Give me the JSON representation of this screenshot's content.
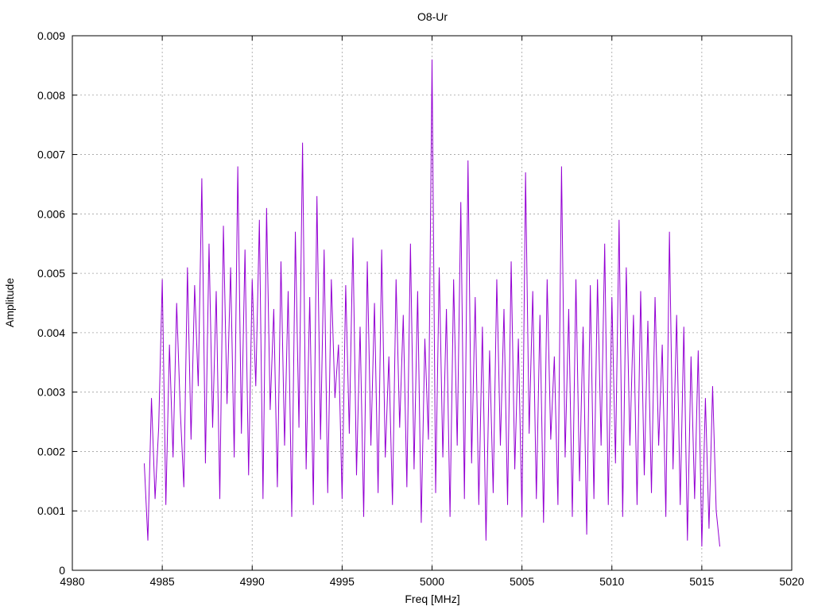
{
  "chart_data": {
    "type": "line",
    "title": "O8-Ur",
    "xlabel": "Freq [MHz]",
    "ylabel": "Amplitude",
    "xlim": [
      4980,
      5020
    ],
    "ylim": [
      0,
      0.009
    ],
    "x_ticks": [
      "4980",
      "4985",
      "4990",
      "4995",
      "5000",
      "5005",
      "5010",
      "5015",
      "5020"
    ],
    "y_ticks": [
      "0",
      "0.001",
      "0.002",
      "0.003",
      "0.004",
      "0.005",
      "0.006",
      "0.007",
      "0.008",
      "0.009"
    ],
    "grid": true,
    "legend": "none",
    "series": [
      {
        "color": "#9400d3",
        "x": [
          4984.0,
          4984.2,
          4984.4,
          4984.6,
          4984.8,
          4985.0,
          4985.2,
          4985.4,
          4985.6,
          4985.8,
          4986.0,
          4986.2,
          4986.4,
          4986.6,
          4986.8,
          4987.0,
          4987.2,
          4987.4,
          4987.6,
          4987.8,
          4988.0,
          4988.2,
          4988.4,
          4988.6,
          4988.8,
          4989.0,
          4989.2,
          4989.4,
          4989.6,
          4989.8,
          4990.0,
          4990.2,
          4990.4,
          4990.6,
          4990.8,
          4991.0,
          4991.2,
          4991.4,
          4991.6,
          4991.8,
          4992.0,
          4992.2,
          4992.4,
          4992.6,
          4992.8,
          4993.0,
          4993.2,
          4993.4,
          4993.6,
          4993.8,
          4994.0,
          4994.2,
          4994.4,
          4994.6,
          4994.8,
          4995.0,
          4995.2,
          4995.4,
          4995.6,
          4995.8,
          4996.0,
          4996.2,
          4996.4,
          4996.6,
          4996.8,
          4997.0,
          4997.2,
          4997.4,
          4997.6,
          4997.8,
          4998.0,
          4998.2,
          4998.4,
          4998.6,
          4998.8,
          4999.0,
          4999.2,
          4999.4,
          4999.6,
          4999.8,
          5000.0,
          5000.2,
          5000.4,
          5000.6,
          5000.8,
          5001.0,
          5001.2,
          5001.4,
          5001.6,
          5001.8,
          5002.0,
          5002.2,
          5002.4,
          5002.6,
          5002.8,
          5003.0,
          5003.2,
          5003.4,
          5003.6,
          5003.8,
          5004.0,
          5004.2,
          5004.4,
          5004.6,
          5004.8,
          5005.0,
          5005.2,
          5005.4,
          5005.6,
          5005.8,
          5006.0,
          5006.2,
          5006.4,
          5006.6,
          5006.8,
          5007.0,
          5007.2,
          5007.4,
          5007.6,
          5007.8,
          5008.0,
          5008.2,
          5008.4,
          5008.6,
          5008.8,
          5009.0,
          5009.2,
          5009.4,
          5009.6,
          5009.8,
          5010.0,
          5010.2,
          5010.4,
          5010.6,
          5010.8,
          5011.0,
          5011.2,
          5011.4,
          5011.6,
          5011.8,
          5012.0,
          5012.2,
          5012.4,
          5012.6,
          5012.8,
          5013.0,
          5013.2,
          5013.4,
          5013.6,
          5013.8,
          5014.0,
          5014.2,
          5014.4,
          5014.6,
          5014.8,
          5015.0,
          5015.2,
          5015.4,
          5015.6,
          5015.8,
          5016.0
        ],
        "y": [
          0.0018,
          0.0005,
          0.0029,
          0.0012,
          0.0024,
          0.0049,
          0.0011,
          0.0038,
          0.0019,
          0.0045,
          0.0027,
          0.0014,
          0.0051,
          0.0022,
          0.0048,
          0.0031,
          0.0066,
          0.0018,
          0.0055,
          0.0024,
          0.0047,
          0.0012,
          0.0058,
          0.0028,
          0.0051,
          0.0019,
          0.0068,
          0.0023,
          0.0054,
          0.0016,
          0.0049,
          0.0031,
          0.0059,
          0.0012,
          0.0061,
          0.0027,
          0.0044,
          0.0014,
          0.0052,
          0.0021,
          0.0047,
          0.0009,
          0.0057,
          0.0024,
          0.0072,
          0.0017,
          0.0046,
          0.0011,
          0.0063,
          0.0022,
          0.0054,
          0.0013,
          0.0049,
          0.0029,
          0.0038,
          0.0012,
          0.0048,
          0.0023,
          0.0056,
          0.0016,
          0.0041,
          0.0009,
          0.0052,
          0.0021,
          0.0045,
          0.0013,
          0.0054,
          0.0019,
          0.0036,
          0.0011,
          0.0049,
          0.0024,
          0.0043,
          0.0014,
          0.0055,
          0.0017,
          0.0047,
          0.0008,
          0.0039,
          0.0022,
          0.0086,
          0.0013,
          0.0051,
          0.0019,
          0.0044,
          0.0009,
          0.0049,
          0.0021,
          0.0062,
          0.0012,
          0.0069,
          0.0018,
          0.0046,
          0.0011,
          0.0041,
          0.0005,
          0.0037,
          0.0013,
          0.0049,
          0.0021,
          0.0044,
          0.0011,
          0.0052,
          0.0017,
          0.0039,
          0.0009,
          0.0067,
          0.0023,
          0.0047,
          0.0012,
          0.0043,
          0.0008,
          0.0049,
          0.0022,
          0.0036,
          0.0011,
          0.0068,
          0.0019,
          0.0044,
          0.0009,
          0.0049,
          0.0015,
          0.0041,
          0.0006,
          0.0048,
          0.0012,
          0.0049,
          0.0021,
          0.0055,
          0.0011,
          0.0046,
          0.0018,
          0.0059,
          0.0009,
          0.0051,
          0.0021,
          0.0043,
          0.0011,
          0.0047,
          0.0016,
          0.0042,
          0.0013,
          0.0046,
          0.0021,
          0.0038,
          0.0009,
          0.0057,
          0.0017,
          0.0043,
          0.0011,
          0.0041,
          0.0005,
          0.0036,
          0.0012,
          0.0037,
          0.0004,
          0.0029,
          0.0007,
          0.0031,
          0.001,
          0.0004
        ]
      }
    ]
  }
}
